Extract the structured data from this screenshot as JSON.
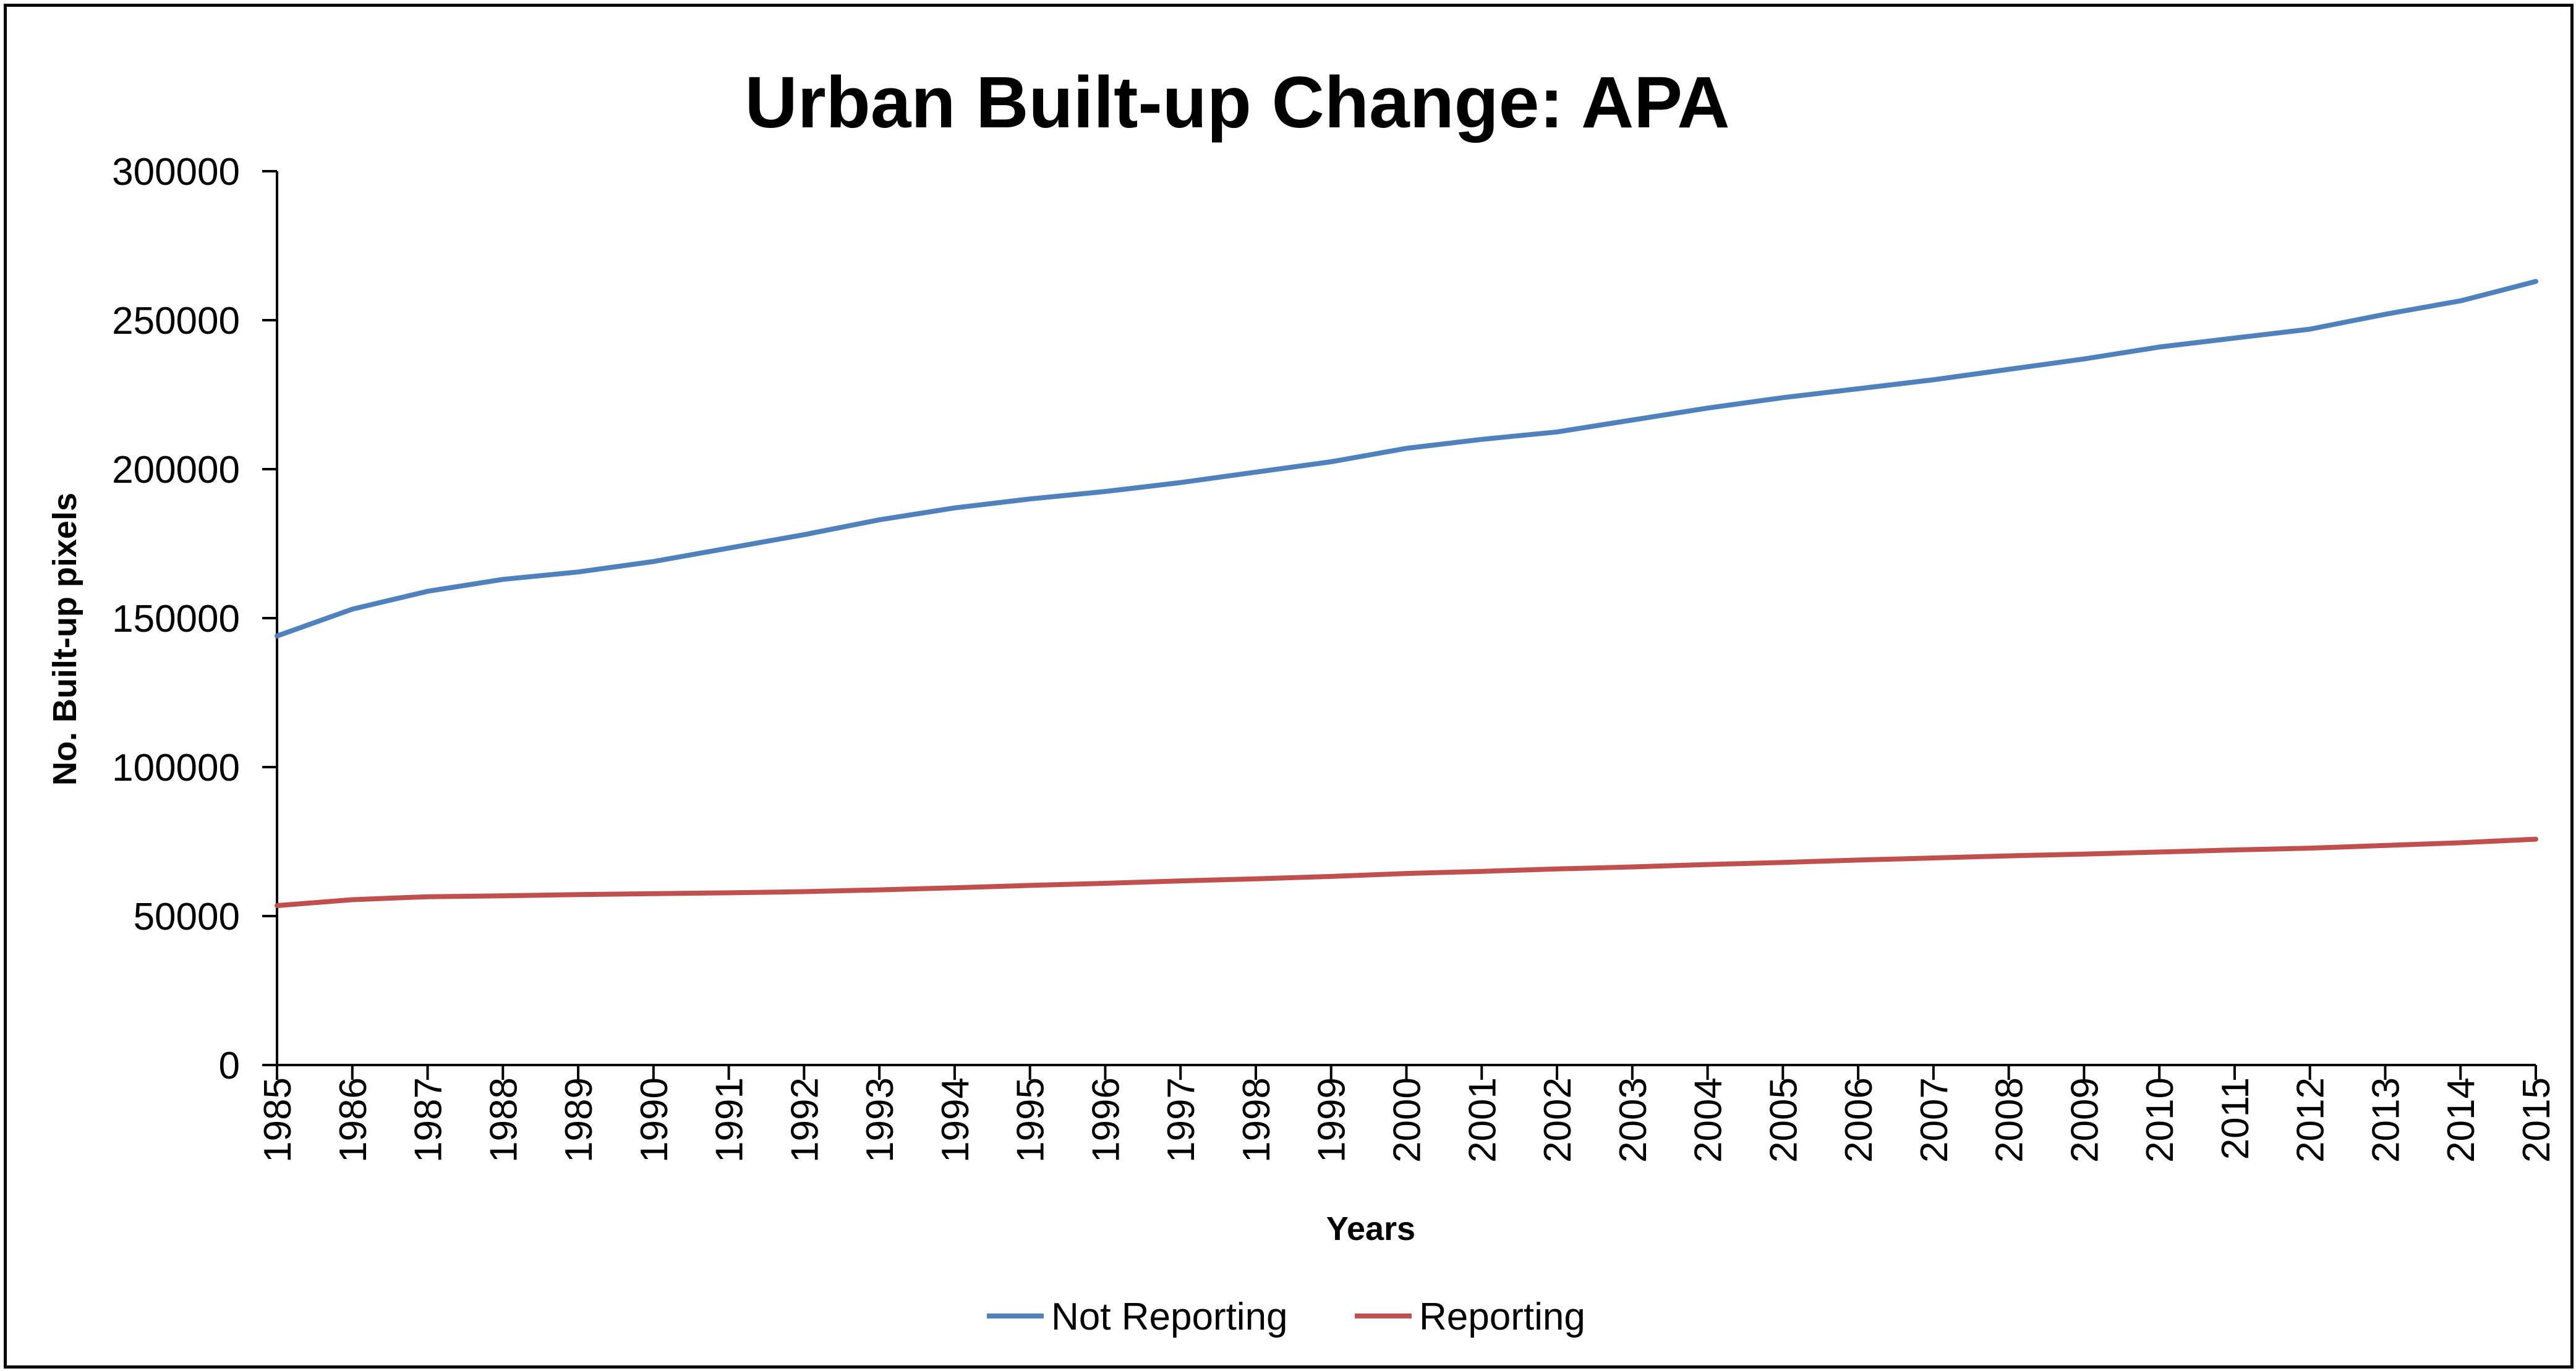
{
  "chart_data": {
    "type": "line",
    "title": "Urban Built-up Change: APA",
    "xlabel": "Years",
    "ylabel": "No. Built-up pixels",
    "categories": [
      "1985",
      "1986",
      "1987",
      "1988",
      "1989",
      "1990",
      "1991",
      "1992",
      "1993",
      "1994",
      "1995",
      "1996",
      "1997",
      "1998",
      "1999",
      "2000",
      "2001",
      "2002",
      "2003",
      "2004",
      "2005",
      "2006",
      "2007",
      "2008",
      "2009",
      "2010",
      "2011",
      "2012",
      "2013",
      "2014",
      "2015"
    ],
    "ylim": [
      0,
      300000
    ],
    "yticks": [
      0,
      50000,
      100000,
      150000,
      200000,
      250000,
      300000
    ],
    "ytick_labels": [
      "0",
      "50000",
      "100000",
      "150000",
      "200000",
      "250000",
      "300000"
    ],
    "grid": false,
    "legend_position": "bottom",
    "series": [
      {
        "name": "Not Reporting",
        "color": "#4F81BD",
        "values": [
          144000,
          153000,
          159000,
          163000,
          165500,
          169000,
          173500,
          178000,
          183000,
          187000,
          190000,
          192500,
          195500,
          199000,
          202500,
          207000,
          210000,
          212500,
          216500,
          220500,
          224000,
          227000,
          230000,
          233500,
          237000,
          241000,
          244000,
          247000,
          252000,
          256500,
          263000
        ]
      },
      {
        "name": "Reporting",
        "color": "#C0504D",
        "values": [
          53500,
          55500,
          56500,
          56800,
          57200,
          57500,
          57800,
          58200,
          58800,
          59500,
          60300,
          61000,
          61800,
          62500,
          63300,
          64300,
          65000,
          65800,
          66500,
          67300,
          68000,
          68800,
          69500,
          70200,
          70800,
          71500,
          72200,
          72800,
          73700,
          74600,
          75800
        ]
      }
    ]
  }
}
